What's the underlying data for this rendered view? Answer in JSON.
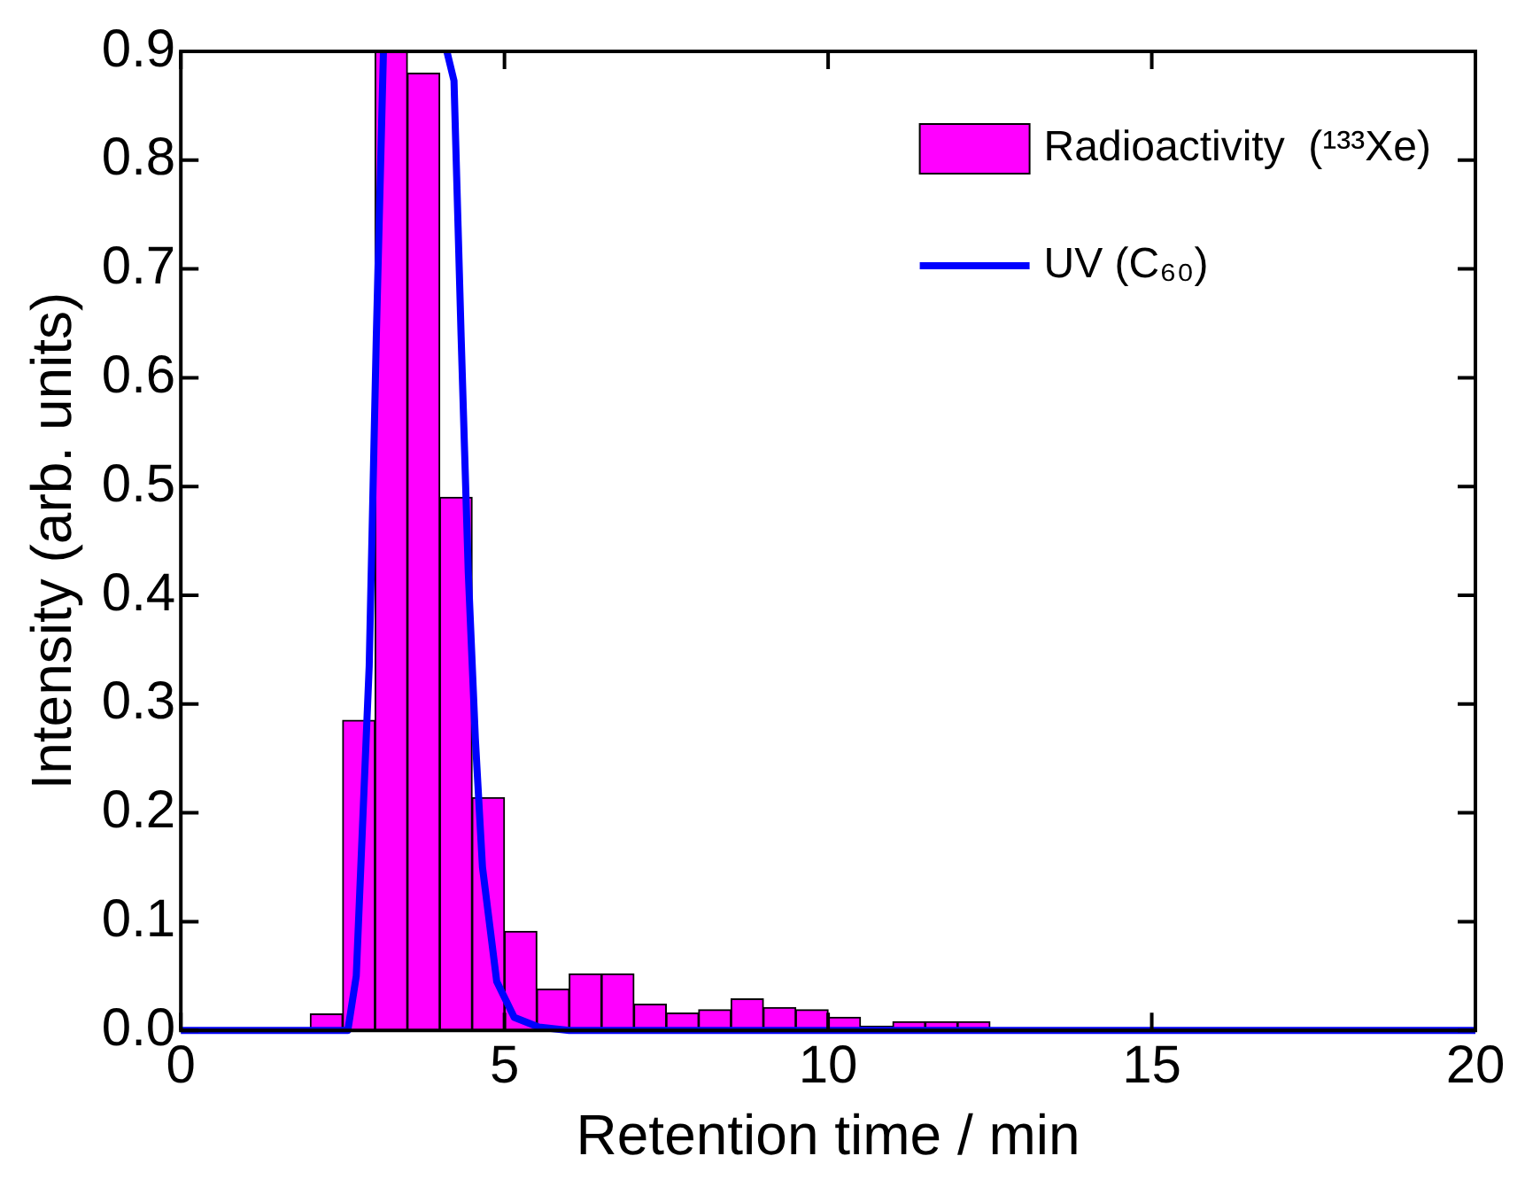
{
  "chart_data": {
    "type": "histogram",
    "xlabel": "Retention time / min",
    "ylabel": "Intensity (arb. units)",
    "bins": [
      2,
      2.5,
      3,
      3.5,
      4,
      4.5,
      5,
      5.5,
      6,
      6.5,
      7,
      7.5,
      8,
      8.5,
      9,
      9.5,
      10,
      10.5,
      11,
      11.5,
      12,
      12.5,
      13,
      13.5,
      14,
      14.5,
      15,
      15.5,
      16,
      16.5,
      17,
      17.5
    ],
    "series": [
      {
        "name": "Radioactivity  (¹³³Xe)",
        "color": "#ff00ff",
        "values": [
          0.015,
          0.285,
          0.9,
          0.88,
          0.49,
          0.214,
          0.091,
          0.038,
          0.052,
          0.052,
          0.024,
          0.016,
          0.019,
          0.029,
          0.021,
          0.019,
          0.012,
          0.004,
          0.008,
          0.008,
          0.008,
          0,
          0,
          0,
          0,
          0,
          0.002,
          0.002,
          0.002,
          0.002,
          0.002
        ]
      },
      {
        "name": "UV (C₆₀)",
        "type": "line",
        "color": "#0000ff",
        "x": [
          0,
          2.58,
          2.71,
          2.91,
          3.02,
          3.13,
          3.6,
          4.11,
          4.22,
          4.33,
          4.44,
          4.55,
          4.66,
          4.88,
          5.15,
          5.53,
          6,
          20
        ],
        "values": [
          0,
          0,
          0.05,
          0.335,
          0.638,
          0.9,
          null,
          0.9,
          0.873,
          0.638,
          0.422,
          0.268,
          0.15,
          0.045,
          0.012,
          0.003,
          0,
          0
        ]
      }
    ],
    "xlim": [
      0,
      20
    ],
    "xticks": [
      0,
      5,
      10,
      15,
      20
    ],
    "ylim": [
      0,
      0.9
    ],
    "yticks": [
      {
        "value": 0,
        "label": "0.0"
      },
      {
        "value": 0.1,
        "label": "0.1"
      },
      {
        "value": 0.2,
        "label": "0.2"
      },
      {
        "value": 0.3,
        "label": "0.3"
      },
      {
        "value": 0.4,
        "label": "0.4"
      },
      {
        "value": 0.5,
        "label": "0.5"
      },
      {
        "value": 0.6,
        "label": "0.6"
      },
      {
        "value": 0.7,
        "label": "0.7"
      },
      {
        "value": 0.8,
        "label": "0.8"
      },
      {
        "value": 0.9,
        "label": "0.9"
      }
    ],
    "grid": false,
    "legend": "top right"
  }
}
